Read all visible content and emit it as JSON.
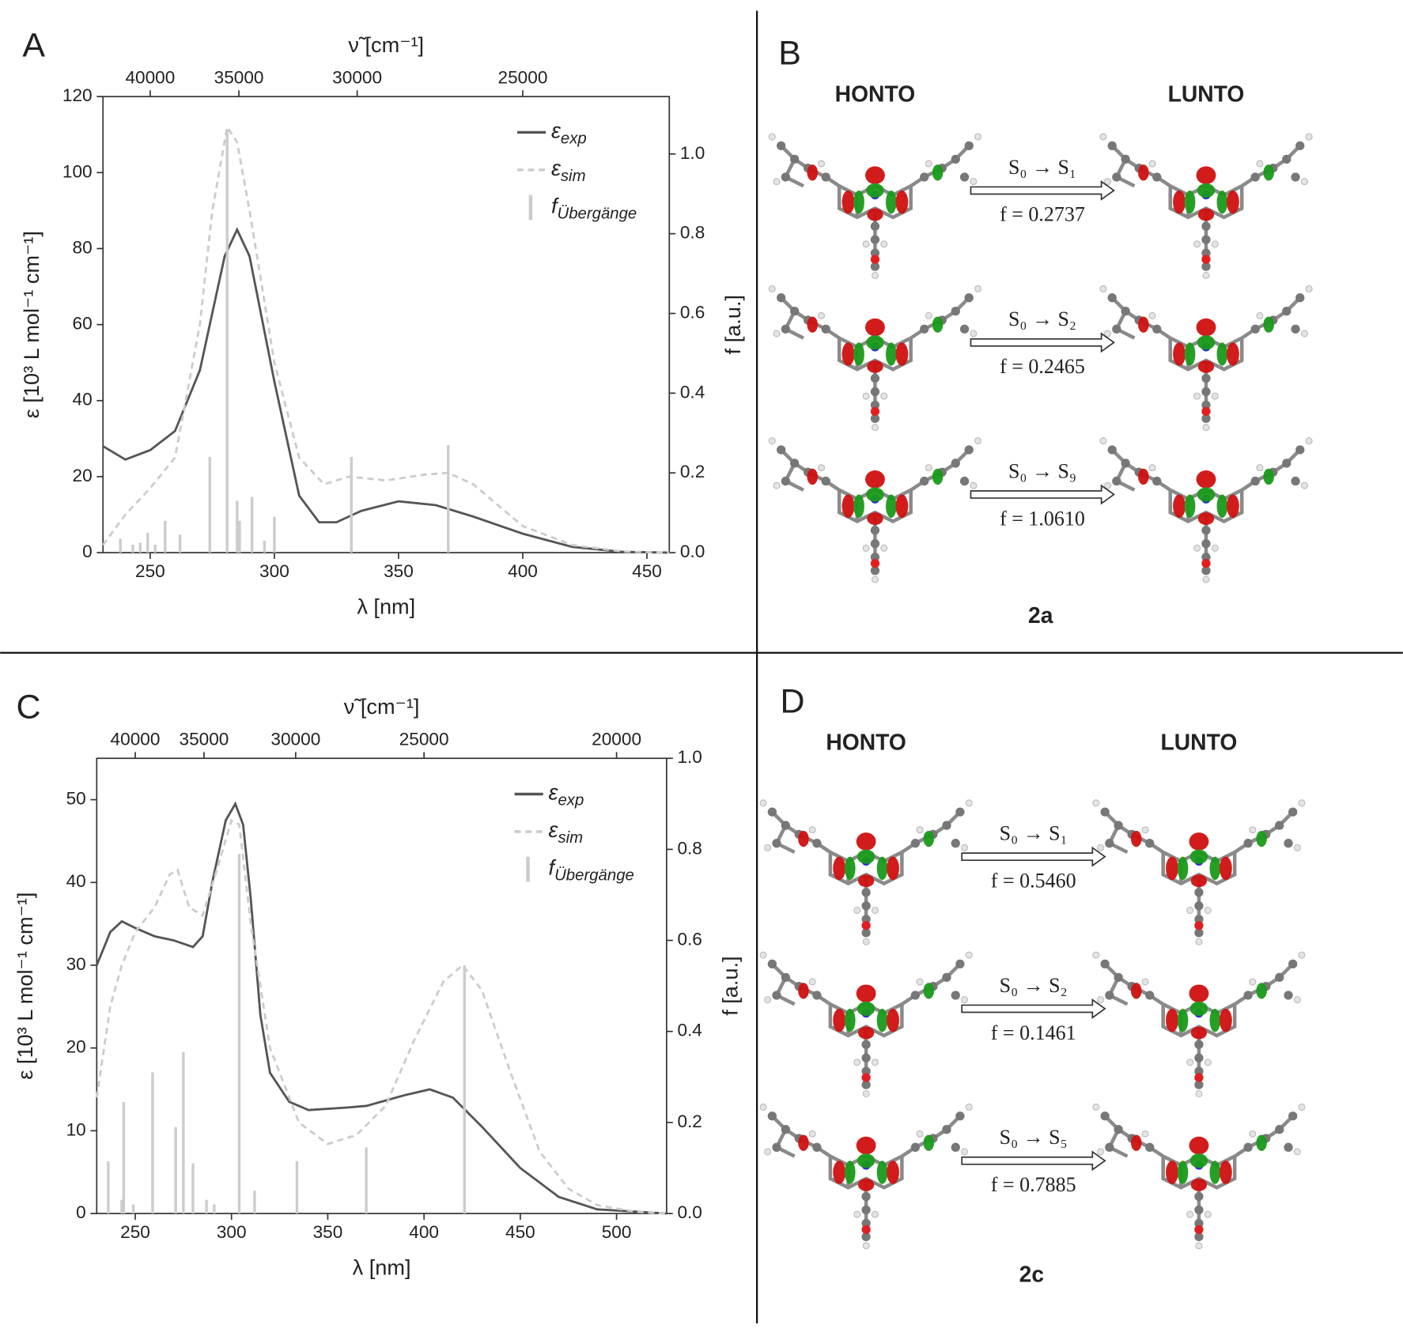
{
  "chart_data": [
    {
      "type": "line",
      "label": "A",
      "xlabel": "λ [nm]",
      "ylabel": "ε [10³ L mol⁻¹ cm⁻¹]",
      "y2label": "f [a.u.]",
      "x2label": "ν̃ [cm⁻¹]",
      "xlim": [
        231,
        459
      ],
      "xticks": [
        250,
        300,
        350,
        400,
        450
      ],
      "ylim": [
        0,
        120
      ],
      "yticks": [
        0,
        20,
        40,
        60,
        80,
        100,
        120
      ],
      "y2lim": [
        0,
        1.144
      ],
      "y2ticks": [
        {
          "value": 0,
          "label": "0.0"
        },
        0.2,
        0.4,
        0.6,
        0.8,
        {
          "value": 1,
          "label": "1.0"
        }
      ],
      "x2ticks": [
        40000,
        35000,
        30000,
        25000
      ],
      "legend": "upper right",
      "series": [
        {
          "name": "εexp",
          "color": "#555555",
          "dashed": false,
          "x": [
            231,
            240,
            250,
            260,
            270,
            280,
            285,
            290,
            300,
            310,
            318,
            325,
            335,
            350,
            365,
            380,
            400,
            420,
            440,
            459
          ],
          "values": [
            28,
            24.5,
            27,
            32,
            48,
            78,
            85,
            78,
            45,
            15,
            8,
            8,
            11,
            13.5,
            12.5,
            9.5,
            5,
            1.5,
            0.2,
            0
          ]
        },
        {
          "name": "εsim",
          "color": "#cccccc",
          "dashed": true,
          "x": [
            231,
            240,
            250,
            260,
            270,
            275,
            281,
            285,
            290,
            300,
            310,
            320,
            330,
            345,
            360,
            370,
            380,
            400,
            420,
            440,
            459
          ],
          "values": [
            2,
            10,
            17,
            25,
            60,
            90,
            112,
            108,
            90,
            50,
            25,
            18,
            20,
            19,
            20.5,
            21,
            18,
            7,
            2,
            0.3,
            0
          ]
        },
        {
          "name": "fÜbergänge",
          "color": "#cccccc",
          "type": "bar",
          "axis": "y2",
          "x": [
            238,
            243,
            246,
            249,
            252,
            256,
            262,
            274,
            281,
            285,
            286,
            291,
            296,
            300,
            331,
            370
          ],
          "values": [
            0.035,
            0.02,
            0.025,
            0.05,
            0.02,
            0.08,
            0.045,
            0.24,
            1.06,
            0.13,
            0.08,
            0.14,
            0.03,
            0.09,
            0.24,
            0.27
          ]
        }
      ]
    },
    {
      "type": "line",
      "label": "C",
      "xlabel": "λ [nm]",
      "ylabel": "ε [10³ L mol⁻¹ cm⁻¹]",
      "y2label": "f [a.u.]",
      "x2label": "ν̃ [cm⁻¹]",
      "xlim": [
        230,
        526
      ],
      "xticks": [
        250,
        300,
        350,
        400,
        450,
        500
      ],
      "ylim": [
        0,
        55
      ],
      "yticks": [
        0,
        10,
        20,
        30,
        40,
        50
      ],
      "y2lim": [
        0,
        1
      ],
      "y2ticks": [
        {
          "value": 0,
          "label": "0.0"
        },
        0.2,
        0.4,
        0.6,
        0.8,
        {
          "value": 1,
          "label": "1.0"
        }
      ],
      "x2ticks": [
        40000,
        35000,
        30000,
        25000,
        20000
      ],
      "legend": "upper right",
      "series": [
        {
          "name": "εexp",
          "color": "#555555",
          "dashed": false,
          "x": [
            230,
            237,
            243,
            250,
            260,
            270,
            280,
            285,
            290,
            297,
            302,
            306,
            310,
            315,
            320,
            330,
            340,
            360,
            370,
            390,
            403,
            415,
            430,
            450,
            470,
            490,
            526
          ],
          "values": [
            30,
            34,
            35.3,
            34.5,
            33.5,
            33,
            32.2,
            33.5,
            40,
            47.5,
            49.5,
            47,
            38,
            24,
            17,
            13.5,
            12.5,
            12.8,
            13,
            14.3,
            15,
            14,
            10.5,
            5.5,
            2,
            0.5,
            0
          ]
        },
        {
          "name": "εsim",
          "color": "#cccccc",
          "dashed": true,
          "x": [
            230,
            237,
            243,
            250,
            260,
            268,
            272,
            278,
            285,
            293,
            300,
            304,
            310,
            320,
            335,
            350,
            365,
            380,
            395,
            410,
            420,
            430,
            445,
            460,
            475,
            490,
            510,
            526
          ],
          "values": [
            14,
            25,
            30,
            34,
            37,
            41,
            41.5,
            37,
            36,
            42,
            47.5,
            47,
            35,
            20,
            11,
            8.4,
            9.5,
            13,
            21,
            28,
            30,
            27,
            17,
            7.5,
            3,
            1,
            0.2,
            0
          ]
        },
        {
          "name": "fÜbergänge",
          "color": "#cccccc",
          "type": "bar",
          "axis": "y2",
          "x": [
            236,
            243,
            244,
            249,
            259,
            271,
            275,
            280,
            287,
            291,
            304,
            312,
            334,
            370,
            421
          ],
          "values": [
            0.115,
            0.03,
            0.245,
            0.02,
            0.31,
            0.19,
            0.355,
            0.11,
            0.03,
            0.02,
            0.79,
            0.05,
            0.115,
            0.145,
            0.545
          ]
        }
      ]
    }
  ],
  "diagrams": [
    {
      "label": "B",
      "columns": [
        "HONTO",
        "LUNTO"
      ],
      "transitions": [
        {
          "label": "S₀ → S₁",
          "f": "f = 0.2737"
        },
        {
          "label": "S₀ → S₂",
          "f": "f = 0.2465"
        },
        {
          "label": "S₀ → S₉",
          "f": "f = 1.0610"
        }
      ],
      "compound": "2a"
    },
    {
      "label": "D",
      "columns": [
        "HONTO",
        "LUNTO"
      ],
      "transitions": [
        {
          "label": "S₀ → S₁",
          "f": "f = 0.5460"
        },
        {
          "label": "S₀ → S₂",
          "f": "f = 0.1461"
        },
        {
          "label": "S₀ → S₅",
          "f": "f = 0.7885"
        }
      ],
      "compound": "2c"
    }
  ]
}
